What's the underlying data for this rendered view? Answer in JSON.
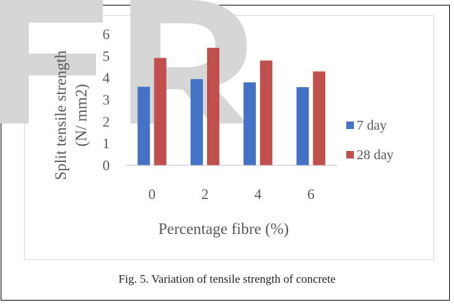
{
  "chart_data": {
    "type": "bar",
    "categories": [
      "0",
      "2",
      "4",
      "6"
    ],
    "series": [
      {
        "name": "7 day",
        "values": [
          3.6,
          3.95,
          3.8,
          3.58
        ]
      },
      {
        "name": "28 day",
        "values": [
          4.92,
          5.38,
          4.8,
          4.3
        ]
      }
    ],
    "xlabel": "Percentage fibre (%)",
    "ylabel_line1": "Split tensile strength",
    "ylabel_line2": "(N/ mm2)",
    "ylim": [
      0,
      6
    ],
    "yticks": [
      "0",
      "1",
      "2",
      "3",
      "4",
      "5",
      "6"
    ],
    "legend_position": "right",
    "grid": false,
    "colors": {
      "series_1": "#4472c4",
      "series_2": "#c0504d"
    }
  },
  "caption": "Fig. 5. Variation of tensile strength of concrete",
  "watermark": {
    "color": "#d6d6d6"
  }
}
